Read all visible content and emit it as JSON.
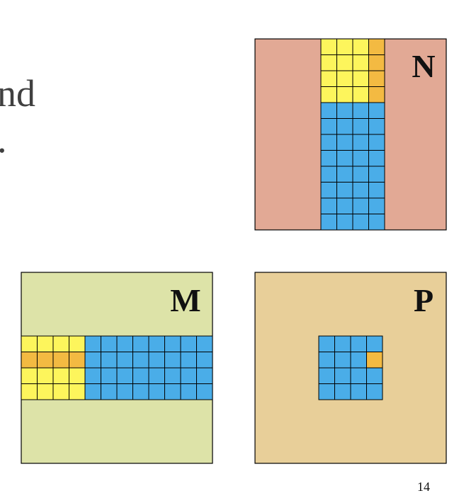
{
  "body_text": [
    "nd",
    "."
  ],
  "matrices": [
    {
      "label": "N"
    },
    {
      "label": "M"
    },
    {
      "label": "P"
    }
  ],
  "page_number": "14"
}
